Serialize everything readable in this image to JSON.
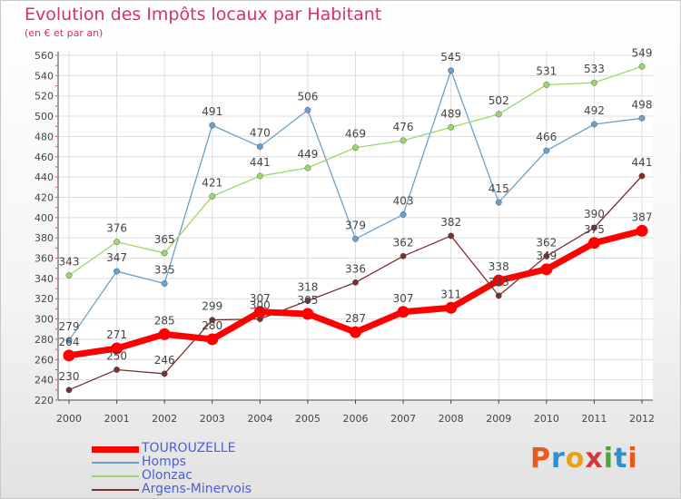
{
  "title": "Evolution des Impôts locaux par Habitant",
  "subtitle": "(en € et par an)",
  "logo": {
    "letters": [
      "P",
      "r",
      "o",
      "x",
      "i",
      "t",
      "i"
    ],
    "colors": [
      "#e85a1a",
      "#2e8fd0",
      "#e8a21a",
      "#d23b3b",
      "#53a33a",
      "#2e8fd0",
      "#e85a1a"
    ]
  },
  "chart_data": {
    "type": "line",
    "x": [
      2000,
      2001,
      2002,
      2003,
      2004,
      2005,
      2006,
      2007,
      2008,
      2009,
      2010,
      2011,
      2012
    ],
    "ylim": [
      220,
      560
    ],
    "yticks": [
      220,
      240,
      260,
      280,
      300,
      320,
      340,
      360,
      380,
      400,
      420,
      440,
      460,
      480,
      500,
      520,
      540,
      560
    ],
    "grid": true,
    "legend_position": "bottom-left",
    "series": [
      {
        "name": "TOUROUZELLE",
        "color": "#ff0000",
        "values": [
          264,
          271,
          285,
          280,
          307,
          305,
          287,
          307,
          311,
          338,
          349,
          375,
          387
        ]
      },
      {
        "name": "Homps",
        "color": "#6aa0cc",
        "values": [
          279,
          347,
          335,
          491,
          470,
          506,
          379,
          403,
          545,
          415,
          466,
          492,
          498
        ]
      },
      {
        "name": "Olonzac",
        "color": "#9ad86a",
        "values": [
          343,
          376,
          365,
          421,
          441,
          449,
          469,
          476,
          489,
          502,
          531,
          533,
          549
        ]
      },
      {
        "name": "Argens-Minervois",
        "color": "#7a3030",
        "values": [
          230,
          250,
          246,
          299,
          300,
          318,
          336,
          362,
          382,
          323,
          362,
          390,
          441
        ]
      }
    ]
  }
}
